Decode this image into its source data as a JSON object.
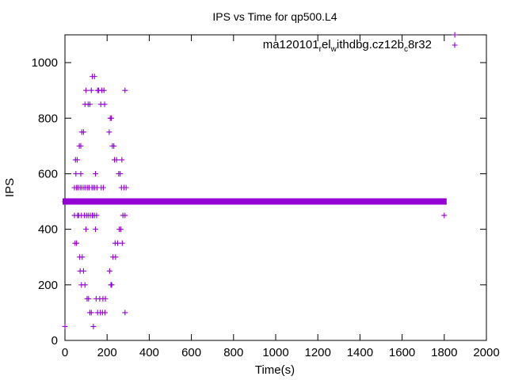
{
  "chart_data": {
    "type": "scatter",
    "title": "IPS vs Time for qp500.L4",
    "xlabel": "Time(s)",
    "ylabel": "IPS",
    "xlim": [
      0,
      2000
    ],
    "ylim": [
      0,
      1100
    ],
    "xticks": [
      0,
      200,
      400,
      600,
      800,
      1000,
      1200,
      1400,
      1600,
      1800,
      2000
    ],
    "yticks": [
      0,
      200,
      400,
      600,
      800,
      1000
    ],
    "grid": false,
    "legend_placement": "top-right",
    "marker": "+",
    "series": [
      {
        "name": "ma120101_rel_withdbg.cz12b_c8r32",
        "color": "#9400d3",
        "baseline": {
          "y": 500,
          "x_start": 0,
          "x_end": 1800
        },
        "points": [
          [
            0,
            50
          ],
          [
            0,
            500
          ],
          [
            40,
            500
          ],
          [
            45,
            450
          ],
          [
            45,
            550
          ],
          [
            48,
            350
          ],
          [
            50,
            650
          ],
          [
            52,
            600
          ],
          [
            55,
            350
          ],
          [
            55,
            550
          ],
          [
            58,
            650
          ],
          [
            60,
            450
          ],
          [
            62,
            550
          ],
          [
            65,
            450
          ],
          [
            68,
            700
          ],
          [
            70,
            300
          ],
          [
            70,
            500
          ],
          [
            72,
            550
          ],
          [
            72,
            250
          ],
          [
            75,
            700
          ],
          [
            75,
            600
          ],
          [
            78,
            450
          ],
          [
            78,
            200
          ],
          [
            80,
            550
          ],
          [
            80,
            750
          ],
          [
            82,
            300
          ],
          [
            85,
            500
          ],
          [
            88,
            250
          ],
          [
            88,
            750
          ],
          [
            90,
            550
          ],
          [
            92,
            450
          ],
          [
            95,
            850
          ],
          [
            95,
            200
          ],
          [
            98,
            550
          ],
          [
            100,
            400
          ],
          [
            100,
            900
          ],
          [
            102,
            450
          ],
          [
            105,
            150
          ],
          [
            108,
            550
          ],
          [
            110,
            450
          ],
          [
            110,
            850
          ],
          [
            112,
            150
          ],
          [
            115,
            550
          ],
          [
            118,
            100
          ],
          [
            118,
            850
          ],
          [
            120,
            450
          ],
          [
            122,
            500
          ],
          [
            125,
            900
          ],
          [
            125,
            100
          ],
          [
            128,
            550
          ],
          [
            130,
            450
          ],
          [
            130,
            950
          ],
          [
            132,
            450
          ],
          [
            135,
            550
          ],
          [
            135,
            50
          ],
          [
            138,
            500
          ],
          [
            140,
            950
          ],
          [
            140,
            450
          ],
          [
            142,
            550
          ],
          [
            145,
            600
          ],
          [
            145,
            400
          ],
          [
            148,
            150
          ],
          [
            150,
            450
          ],
          [
            152,
            550
          ],
          [
            155,
            900
          ],
          [
            155,
            100
          ],
          [
            160,
            900
          ],
          [
            162,
            500
          ],
          [
            165,
            150
          ],
          [
            168,
            100
          ],
          [
            170,
            850
          ],
          [
            172,
            550
          ],
          [
            175,
            900
          ],
          [
            178,
            100
          ],
          [
            180,
            150
          ],
          [
            182,
            550
          ],
          [
            185,
            900
          ],
          [
            188,
            850
          ],
          [
            190,
            100
          ],
          [
            192,
            150
          ],
          [
            210,
            750
          ],
          [
            212,
            250
          ],
          [
            215,
            800
          ],
          [
            218,
            200
          ],
          [
            220,
            800
          ],
          [
            222,
            200
          ],
          [
            225,
            700
          ],
          [
            228,
            300
          ],
          [
            232,
            700
          ],
          [
            235,
            650
          ],
          [
            238,
            350
          ],
          [
            240,
            300
          ],
          [
            245,
            650
          ],
          [
            250,
            350
          ],
          [
            255,
            600
          ],
          [
            258,
            400
          ],
          [
            262,
            600
          ],
          [
            265,
            400
          ],
          [
            268,
            550
          ],
          [
            270,
            650
          ],
          [
            272,
            350
          ],
          [
            275,
            450
          ],
          [
            280,
            550
          ],
          [
            285,
            900
          ],
          [
            285,
            100
          ],
          [
            285,
            450
          ],
          [
            290,
            550
          ],
          [
            1800,
            450
          ],
          [
            1850,
            1100
          ]
        ]
      }
    ]
  }
}
